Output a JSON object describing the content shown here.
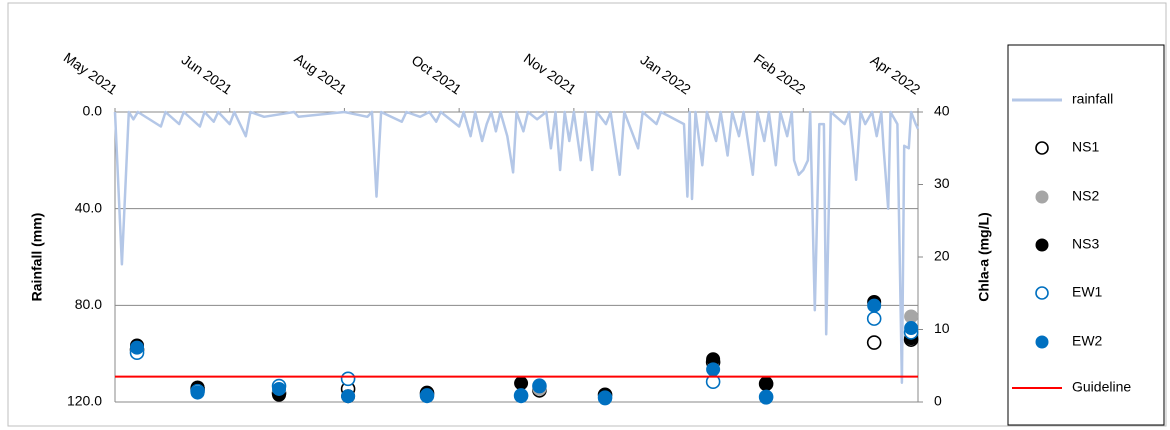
{
  "chart_data": {
    "type": "combo",
    "ylabel": "Rainfall (mm)",
    "y2label": "Chla-a (mg/L)",
    "xlim": [
      0,
      350
    ],
    "xticks": [
      {
        "value": 0,
        "label": "May 2021"
      },
      {
        "value": 50,
        "label": "Jun 2021"
      },
      {
        "value": 100,
        "label": "Aug 2021"
      },
      {
        "value": 150,
        "label": "Oct 2021"
      },
      {
        "value": 200,
        "label": "Nov 2021"
      },
      {
        "value": 250,
        "label": "Jan 2022"
      },
      {
        "value": 300,
        "label": "Feb 2022"
      },
      {
        "value": 350,
        "label": "Apr 2022"
      }
    ],
    "ylim": [
      0,
      120
    ],
    "y_inverted": true,
    "yticks": [
      {
        "value": 0,
        "label": "0.0"
      },
      {
        "value": 40,
        "label": "40.0"
      },
      {
        "value": 80,
        "label": "80.0"
      },
      {
        "value": 120,
        "label": "120.0"
      }
    ],
    "y2lim": [
      0,
      40
    ],
    "y2ticks": [
      0,
      10,
      20,
      30,
      40
    ],
    "grid": true,
    "legend": "right",
    "x": [
      9.6,
      36,
      71.5,
      101.6,
      136,
      177,
      185,
      213.6,
      260.7,
      283.8,
      330.9,
      347
    ],
    "series": [
      {
        "name": "rainfall",
        "kind": "line",
        "color": "#b4c7e7",
        "x": [
          0,
          3,
          6,
          8,
          10,
          20,
          22,
          28,
          30,
          37,
          39,
          43,
          45,
          50,
          52,
          57,
          59,
          65,
          78,
          80,
          100,
          110,
          112,
          114,
          116,
          125,
          127,
          133,
          137,
          140,
          142,
          150,
          152,
          155,
          157,
          160,
          162,
          164,
          166,
          168,
          171,
          173.5,
          175,
          178,
          180,
          184,
          188,
          190,
          192,
          194,
          196,
          198,
          200,
          203,
          205,
          208,
          210,
          214,
          216,
          220,
          222,
          228,
          230,
          236,
          238,
          248,
          249.5,
          250.5,
          251.5,
          253,
          256,
          258,
          262,
          264,
          267,
          269,
          272,
          274,
          278,
          280,
          283,
          285,
          288,
          290,
          293,
          295,
          296,
          298,
          300,
          302,
          303,
          305,
          307,
          309,
          310,
          312,
          318,
          320,
          323,
          325,
          327,
          330,
          332,
          334,
          335,
          337,
          338,
          341,
          343,
          344,
          346,
          347,
          349,
          350
        ],
        "values": [
          0,
          63,
          0,
          3,
          0,
          6,
          0,
          5,
          0,
          6,
          0,
          4,
          0,
          5,
          0,
          10,
          0,
          2,
          0,
          2,
          0,
          2,
          0,
          35,
          0,
          4,
          0,
          2,
          0,
          4,
          0,
          6,
          0,
          10,
          0,
          12,
          5,
          0,
          8,
          0,
          10,
          25,
          0,
          8,
          0,
          3,
          0,
          15,
          0,
          24,
          0,
          12,
          0,
          20,
          0,
          24,
          0,
          5,
          0,
          26,
          0,
          15,
          0,
          5,
          0,
          5,
          35,
          0,
          36,
          0,
          22,
          0,
          12,
          0,
          18,
          0,
          10,
          0,
          26,
          0,
          12,
          0,
          22,
          0,
          10,
          0,
          20,
          26,
          24,
          20,
          0,
          82,
          5,
          5,
          92,
          0,
          5,
          0,
          28,
          0,
          5,
          0,
          10,
          0,
          15,
          40,
          0,
          5,
          112,
          14,
          15,
          0,
          5,
          7
        ]
      },
      {
        "name": "NS1",
        "kind": "scatter",
        "marker": "open",
        "color": "#000000",
        "axis": "y2",
        "values": [
          7.2,
          1.8,
          1.2,
          1.8,
          1.2,
          null,
          1.6,
          1.0,
          5.5,
          2.5,
          8.2,
          8.6
        ]
      },
      {
        "name": "NS2",
        "kind": "scatter",
        "marker": "filled",
        "color": "#a6a6a6",
        "axis": "y2",
        "values": [
          7.0,
          1.6,
          1.5,
          3.2,
          1.0,
          null,
          1.8,
          0.8,
          2.8,
          0.7,
          13.5,
          11.8
        ]
      },
      {
        "name": "NS3",
        "kind": "scatter",
        "marker": "filled",
        "color": "#000000",
        "axis": "y2",
        "values": [
          7.8,
          2.0,
          1.0,
          0.8,
          1.3,
          2.6,
          null,
          0.9,
          5.9,
          2.6,
          13.8,
          8.8
        ]
      },
      {
        "name": "EW1",
        "kind": "scatter",
        "marker": "open",
        "color": "#0070c0",
        "axis": "y2",
        "values": [
          6.8,
          1.5,
          2.2,
          3.2,
          0.9,
          0.9,
          2.2,
          0.6,
          2.8,
          0.7,
          11.5,
          9.6
        ]
      },
      {
        "name": "EW2",
        "kind": "scatter",
        "marker": "filled",
        "color": "#0070c0",
        "axis": "y2",
        "values": [
          7.5,
          1.3,
          1.8,
          0.8,
          0.8,
          0.8,
          2.3,
          0.5,
          4.5,
          0.6,
          13.3,
          10.2
        ]
      }
    ],
    "guideline": {
      "name": "Guideline",
      "color": "#ff0000",
      "value": 3.5,
      "axis": "y2"
    }
  }
}
